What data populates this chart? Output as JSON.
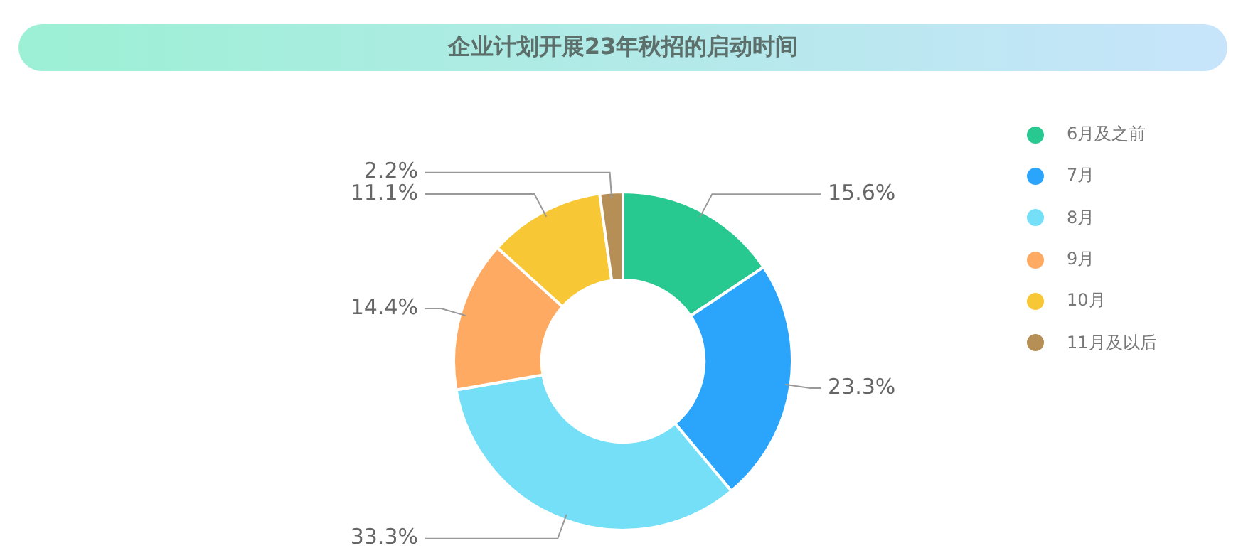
{
  "chart_data": {
    "type": "donut",
    "title": "企业计划开展23年秋招的启动时间",
    "categories": [
      "6月及之前",
      "7月",
      "8月",
      "9月",
      "10月",
      "11月及以后"
    ],
    "values": [
      15.6,
      23.3,
      33.3,
      14.4,
      11.1,
      2.2
    ],
    "colors": [
      "#27c990",
      "#2aa5fb",
      "#76dff8",
      "#ffaa63",
      "#f8c736",
      "#b58f55"
    ],
    "value_labels": [
      "15.6%",
      "23.3%",
      "33.3%",
      "14.4%",
      "11.1%",
      "2.2%"
    ],
    "legend": "right"
  }
}
